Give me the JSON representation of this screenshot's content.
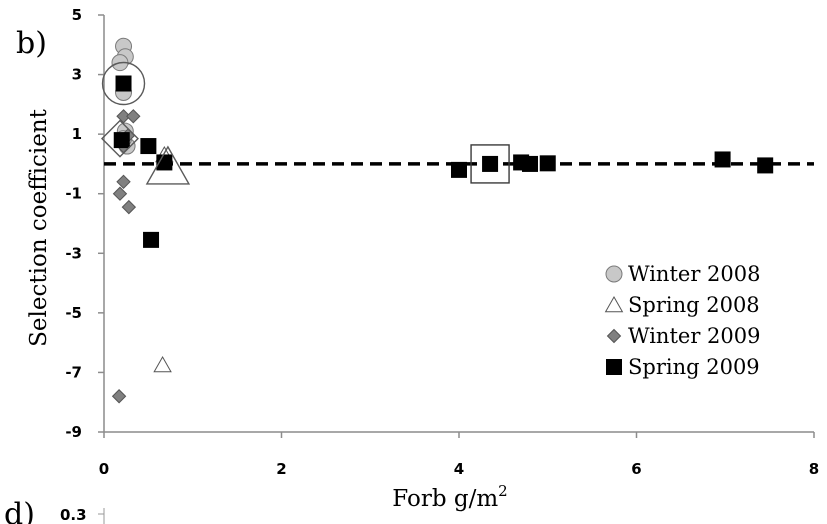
{
  "panel_label": "b)",
  "next_panel_label": "d)",
  "next_panel_tick": "0.3",
  "chart_data": {
    "type": "scatter",
    "title": "",
    "xlabel": "Forb g/m",
    "xlabel_superscript": "2",
    "ylabel": "Selection coefficient",
    "xlim": [
      0,
      8
    ],
    "ylim": [
      -9,
      5
    ],
    "x_ticks": [
      0,
      2,
      4,
      6,
      8
    ],
    "y_ticks": [
      5,
      3,
      1,
      -1,
      -3,
      -5,
      -7,
      -9
    ],
    "reference_line": {
      "y": 0,
      "style": "dashed"
    },
    "legend_position": "right",
    "series": [
      {
        "name": "Winter 2008",
        "marker": "circle",
        "fill": "#c8c8c8",
        "stroke": "#7a7a7a",
        "points": [
          {
            "x": 0.22,
            "y": 3.95
          },
          {
            "x": 0.24,
            "y": 3.6
          },
          {
            "x": 0.18,
            "y": 3.4
          },
          {
            "x": 0.22,
            "y": 2.4
          },
          {
            "x": 0.24,
            "y": 1.1
          },
          {
            "x": 0.26,
            "y": 0.6
          },
          {
            "x": 0.22,
            "y": 0.85
          }
        ],
        "highlighted": [
          {
            "x": 0.22,
            "y": 2.7
          }
        ]
      },
      {
        "name": "Spring 2008",
        "marker": "triangle",
        "fill": "#ffffff",
        "stroke": "#555555",
        "points": [
          {
            "x": 0.68,
            "y": 0.3
          },
          {
            "x": 0.66,
            "y": -6.75
          }
        ],
        "highlighted": [
          {
            "x": 0.72,
            "y": -0.1
          }
        ]
      },
      {
        "name": "Winter 2009",
        "marker": "diamond",
        "fill": "#808080",
        "stroke": "#555555",
        "points": [
          {
            "x": 0.22,
            "y": 1.6
          },
          {
            "x": 0.33,
            "y": 1.6
          },
          {
            "x": 0.27,
            "y": 0.95
          },
          {
            "x": 0.22,
            "y": 0.6
          },
          {
            "x": 0.22,
            "y": -0.6
          },
          {
            "x": 0.18,
            "y": -1.0
          },
          {
            "x": 0.28,
            "y": -1.45
          },
          {
            "x": 0.17,
            "y": -7.8
          }
        ],
        "highlighted": [
          {
            "x": 0.18,
            "y": 0.85
          }
        ]
      },
      {
        "name": "Spring 2009",
        "marker": "square",
        "fill": "#000000",
        "stroke": "#000000",
        "points": [
          {
            "x": 0.22,
            "y": 2.7
          },
          {
            "x": 0.2,
            "y": 0.8
          },
          {
            "x": 0.5,
            "y": 0.6
          },
          {
            "x": 0.68,
            "y": 0.05
          },
          {
            "x": 0.53,
            "y": -2.55
          },
          {
            "x": 4.0,
            "y": -0.2
          },
          {
            "x": 4.35,
            "y": 0.0
          },
          {
            "x": 4.7,
            "y": 0.05
          },
          {
            "x": 4.8,
            "y": 0.0
          },
          {
            "x": 5.0,
            "y": 0.02
          },
          {
            "x": 6.97,
            "y": 0.15
          },
          {
            "x": 7.45,
            "y": -0.05
          }
        ],
        "highlighted": [
          {
            "x": 4.35,
            "y": 0.0
          }
        ]
      }
    ]
  }
}
